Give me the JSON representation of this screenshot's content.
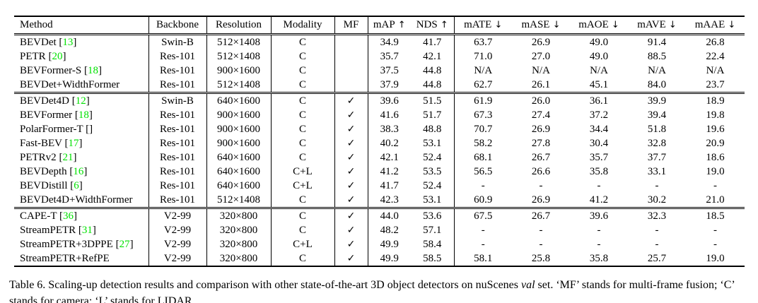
{
  "colors": {
    "citation_green": "#00e100",
    "text": "#000000",
    "rule": "#000000"
  },
  "glyphs": {
    "checkmark": "✓",
    "up_arrow": "↑",
    "down_arrow": "↓",
    "multiply": "×"
  },
  "table": {
    "columns": [
      {
        "key": "method",
        "label": "Method",
        "arrow": null
      },
      {
        "key": "backbone",
        "label": "Backbone",
        "arrow": null
      },
      {
        "key": "resolution",
        "label": "Resolution",
        "arrow": null
      },
      {
        "key": "modality",
        "label": "Modality",
        "arrow": null
      },
      {
        "key": "mf",
        "label": "MF",
        "arrow": null
      },
      {
        "key": "map",
        "label": "mAP",
        "arrow": "↑"
      },
      {
        "key": "nds",
        "label": "NDS",
        "arrow": "↑"
      },
      {
        "key": "mate",
        "label": "mATE",
        "arrow": "↓"
      },
      {
        "key": "mase",
        "label": "mASE",
        "arrow": "↓"
      },
      {
        "key": "maoe",
        "label": "mAOE",
        "arrow": "↓"
      },
      {
        "key": "mave",
        "label": "mAVE",
        "arrow": "↓"
      },
      {
        "key": "maae",
        "label": "mAAE",
        "arrow": "↓"
      }
    ],
    "groups": [
      {
        "rows": [
          {
            "method": "BEVDet",
            "cite": "13",
            "backbone": "Swin-B",
            "resolution": "512×1408",
            "modality": "C",
            "mf": false,
            "values": [
              "34.9",
              "41.7",
              "63.7",
              "26.9",
              "49.0",
              "91.4",
              "26.8"
            ]
          },
          {
            "method": "PETR",
            "cite": "20",
            "backbone": "Res-101",
            "resolution": "512×1408",
            "modality": "C",
            "mf": false,
            "values": [
              "35.7",
              "42.1",
              "71.0",
              "27.0",
              "49.0",
              "88.5",
              "22.4"
            ]
          },
          {
            "method": "BEVFormer-S",
            "cite": "18",
            "backbone": "Res-101",
            "resolution": "900×1600",
            "modality": "C",
            "mf": false,
            "values": [
              "37.5",
              "44.8",
              "N/A",
              "N/A",
              "N/A",
              "N/A",
              "N/A"
            ]
          },
          {
            "method": "BEVDet+WidthFormer",
            "cite": null,
            "backbone": "Res-101",
            "resolution": "512×1408",
            "modality": "C",
            "mf": false,
            "values": [
              "37.9",
              "44.8",
              "62.7",
              "26.1",
              "45.1",
              "84.0",
              "23.7"
            ]
          }
        ]
      },
      {
        "rows": [
          {
            "method": "BEVDet4D",
            "cite": "12",
            "backbone": "Swin-B",
            "resolution": "640×1600",
            "modality": "C",
            "mf": true,
            "values": [
              "39.6",
              "51.5",
              "61.9",
              "26.0",
              "36.1",
              "39.9",
              "18.9"
            ]
          },
          {
            "method": "BEVFormer",
            "cite": "18",
            "backbone": "Res-101",
            "resolution": "900×1600",
            "modality": "C",
            "mf": true,
            "values": [
              "41.6",
              "51.7",
              "67.3",
              "27.4",
              "37.2",
              "39.4",
              "19.8"
            ]
          },
          {
            "method": "PolarFormer-T",
            "cite": "",
            "backbone": "Res-101",
            "resolution": "900×1600",
            "modality": "C",
            "mf": true,
            "values": [
              "38.3",
              "48.8",
              "70.7",
              "26.9",
              "34.4",
              "51.8",
              "19.6"
            ]
          },
          {
            "method": "Fast-BEV",
            "cite": "17",
            "backbone": "Res-101",
            "resolution": "900×1600",
            "modality": "C",
            "mf": true,
            "values": [
              "40.2",
              "53.1",
              "58.2",
              "27.8",
              "30.4",
              "32.8",
              "20.9"
            ]
          },
          {
            "method": "PETRv2",
            "cite": "21",
            "backbone": "Res-101",
            "resolution": "640×1600",
            "modality": "C",
            "mf": true,
            "values": [
              "42.1",
              "52.4",
              "68.1",
              "26.7",
              "35.7",
              "37.7",
              "18.6"
            ]
          },
          {
            "method": "BEVDepth",
            "cite": "16",
            "backbone": "Res-101",
            "resolution": "640×1600",
            "modality": "C+L",
            "mf": true,
            "values": [
              "41.2",
              "53.5",
              "56.5",
              "26.6",
              "35.8",
              "33.1",
              "19.0"
            ]
          },
          {
            "method": "BEVDistill",
            "cite": "6",
            "backbone": "Res-101",
            "resolution": "640×1600",
            "modality": "C+L",
            "mf": true,
            "values": [
              "41.7",
              "52.4",
              "-",
              "-",
              "-",
              "-",
              "-"
            ]
          },
          {
            "method": "BEVDet4D+WidthFormer",
            "cite": null,
            "backbone": "Res-101",
            "resolution": "512×1408",
            "modality": "C",
            "mf": true,
            "values": [
              "42.3",
              "53.1",
              "60.9",
              "26.9",
              "41.2",
              "30.2",
              "21.0"
            ]
          }
        ]
      },
      {
        "rows": [
          {
            "method": "CAPE-T",
            "cite": "36",
            "backbone": "V2-99",
            "resolution": "320×800",
            "modality": "C",
            "mf": true,
            "values": [
              "44.0",
              "53.6",
              "67.5",
              "26.7",
              "39.6",
              "32.3",
              "18.5"
            ]
          },
          {
            "method": "StreamPETR",
            "cite": "31",
            "backbone": "V2-99",
            "resolution": "320×800",
            "modality": "C",
            "mf": true,
            "values": [
              "48.2",
              "57.1",
              "-",
              "-",
              "-",
              "-",
              "-"
            ]
          },
          {
            "method": "StreamPETR+3DPPE",
            "cite": "27",
            "backbone": "V2-99",
            "resolution": "320×800",
            "modality": "C+L",
            "mf": true,
            "values": [
              "49.9",
              "58.4",
              "-",
              "-",
              "-",
              "-",
              "-"
            ]
          },
          {
            "method": "StreamPETR+RefPE",
            "cite": null,
            "backbone": "V2-99",
            "resolution": "320×800",
            "modality": "C",
            "mf": true,
            "values": [
              "49.9",
              "58.5",
              "58.1",
              "25.8",
              "35.8",
              "25.7",
              "19.0"
            ]
          }
        ]
      }
    ]
  },
  "caption": {
    "segments": [
      {
        "text": "Table 6. Scaling-up detection results and comparison with other state-of-the-art 3D object detectors on nuScenes ",
        "italic": false
      },
      {
        "text": "val",
        "italic": true
      },
      {
        "text": " set. ‘MF’ stands for multi-frame fusion; ‘C’ stands for camera; ‘L’ stands for LIDAR.",
        "italic": false
      }
    ]
  }
}
